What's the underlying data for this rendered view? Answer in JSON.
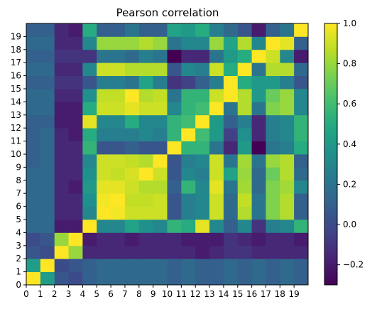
{
  "chart_data": {
    "type": "heatmap",
    "title": "Pearson correlation",
    "xlabel": "",
    "ylabel": "",
    "x_categories": [
      "0",
      "1",
      "2",
      "3",
      "4",
      "5",
      "6",
      "7",
      "8",
      "9",
      "10",
      "11",
      "12",
      "13",
      "14",
      "15",
      "16",
      "17",
      "18",
      "19"
    ],
    "y_categories": [
      "0",
      "1",
      "2",
      "3",
      "4",
      "5",
      "6",
      "7",
      "8",
      "9",
      "10",
      "11",
      "12",
      "13",
      "14",
      "15",
      "16",
      "17",
      "18",
      "19"
    ],
    "colormap": "viridis",
    "vmin": -0.3,
    "vmax": 1.0,
    "colorbar_ticks": [
      -0.2,
      0.0,
      0.2,
      0.4,
      0.6,
      0.8,
      1.0
    ],
    "colorbar_tick_labels": [
      "−0.2",
      "0.0",
      "0.2",
      "0.4",
      "0.6",
      "0.8",
      "1.0"
    ],
    "matrix": [
      [
        1.0,
        0.42,
        0.05,
        0.0,
        0.1,
        0.15,
        0.15,
        0.15,
        0.15,
        0.15,
        0.1,
        0.15,
        0.1,
        0.1,
        0.15,
        0.1,
        0.15,
        0.1,
        0.15,
        0.1
      ],
      [
        0.42,
        1.0,
        0.0,
        0.05,
        0.1,
        0.15,
        0.15,
        0.15,
        0.15,
        0.15,
        0.1,
        0.15,
        0.1,
        0.1,
        0.15,
        0.1,
        0.15,
        0.1,
        0.15,
        0.1
      ],
      [
        0.05,
        0.0,
        1.0,
        0.8,
        -0.15,
        -0.15,
        -0.15,
        -0.15,
        -0.15,
        -0.15,
        -0.15,
        -0.15,
        -0.2,
        -0.15,
        -0.1,
        -0.1,
        -0.15,
        -0.15,
        -0.15,
        -0.15
      ],
      [
        0.0,
        0.05,
        0.8,
        1.0,
        -0.2,
        -0.15,
        -0.15,
        -0.2,
        -0.15,
        -0.15,
        -0.15,
        -0.2,
        -0.2,
        -0.2,
        -0.1,
        -0.15,
        -0.2,
        -0.15,
        -0.15,
        -0.2
      ],
      [
        0.15,
        0.15,
        -0.2,
        -0.2,
        1.0,
        0.3,
        0.3,
        0.45,
        0.35,
        0.3,
        0.55,
        0.5,
        0.95,
        0.3,
        0.1,
        0.3,
        -0.1,
        0.25,
        0.3,
        0.55
      ],
      [
        0.15,
        0.15,
        -0.15,
        -0.15,
        0.3,
        1.0,
        0.98,
        0.9,
        0.9,
        0.9,
        0.05,
        0.25,
        0.3,
        0.9,
        0.15,
        0.85,
        0.2,
        0.75,
        0.85,
        0.1
      ],
      [
        0.15,
        0.15,
        -0.15,
        -0.15,
        0.35,
        0.98,
        1.0,
        0.88,
        0.88,
        0.9,
        0.05,
        0.25,
        0.3,
        0.9,
        0.15,
        0.88,
        0.2,
        0.75,
        0.85,
        0.1
      ],
      [
        0.15,
        0.15,
        -0.15,
        -0.2,
        0.4,
        0.95,
        0.95,
        0.9,
        0.85,
        0.85,
        0.1,
        0.55,
        0.3,
        0.95,
        0.2,
        0.82,
        0.15,
        0.75,
        0.82,
        0.3
      ],
      [
        0.15,
        0.15,
        -0.15,
        -0.15,
        0.35,
        0.9,
        0.88,
        0.92,
        1.0,
        0.9,
        0.05,
        0.3,
        0.25,
        0.9,
        0.45,
        0.8,
        0.15,
        0.7,
        0.85,
        0.15
      ],
      [
        0.1,
        0.15,
        -0.15,
        -0.15,
        0.3,
        0.9,
        0.9,
        0.88,
        0.85,
        1.0,
        0.05,
        0.25,
        0.3,
        0.9,
        0.2,
        0.82,
        0.2,
        0.8,
        0.85,
        0.1
      ],
      [
        0.1,
        0.15,
        -0.15,
        -0.15,
        0.55,
        0.05,
        0.05,
        0.1,
        0.05,
        0.05,
        1.0,
        0.55,
        0.55,
        0.2,
        -0.15,
        0.4,
        -0.3,
        0.2,
        0.25,
        0.5
      ],
      [
        0.1,
        0.15,
        -0.15,
        -0.2,
        0.5,
        0.25,
        0.25,
        0.25,
        0.3,
        0.25,
        0.55,
        1.0,
        0.6,
        0.4,
        -0.05,
        0.35,
        -0.15,
        0.25,
        0.3,
        0.55
      ],
      [
        0.1,
        0.1,
        -0.2,
        -0.2,
        0.95,
        0.3,
        0.3,
        0.5,
        0.3,
        0.3,
        0.55,
        0.6,
        1.0,
        0.4,
        0.1,
        0.25,
        -0.15,
        0.25,
        0.3,
        0.55
      ],
      [
        0.15,
        0.15,
        -0.2,
        -0.2,
        0.5,
        0.9,
        0.9,
        0.95,
        0.9,
        0.9,
        0.3,
        0.55,
        0.6,
        1.0,
        0.2,
        0.85,
        0.2,
        0.75,
        0.8,
        0.3
      ],
      [
        0.15,
        0.15,
        -0.15,
        -0.15,
        0.35,
        0.88,
        0.88,
        1.0,
        0.85,
        0.88,
        0.2,
        0.55,
        0.55,
        0.9,
        1.0,
        0.85,
        0.4,
        0.7,
        0.8,
        0.3
      ],
      [
        0.1,
        0.1,
        -0.1,
        -0.1,
        0.05,
        0.25,
        0.25,
        0.2,
        0.45,
        0.25,
        -0.1,
        -0.05,
        0.1,
        0.25,
        1.0,
        0.5,
        0.4,
        0.4,
        0.25,
        0.05
      ],
      [
        0.15,
        0.15,
        -0.15,
        -0.15,
        0.3,
        0.9,
        0.9,
        0.85,
        0.85,
        0.85,
        0.05,
        0.3,
        0.25,
        0.9,
        0.5,
        1.0,
        0.2,
        0.85,
        0.85,
        0.15
      ],
      [
        0.1,
        0.1,
        -0.1,
        -0.1,
        -0.1,
        0.2,
        0.2,
        0.15,
        0.25,
        0.2,
        -0.3,
        -0.15,
        -0.15,
        0.2,
        0.4,
        0.5,
        1.0,
        0.9,
        0.3,
        -0.2
      ],
      [
        0.15,
        0.15,
        -0.15,
        -0.15,
        0.3,
        0.8,
        0.8,
        0.8,
        0.85,
        0.8,
        0.2,
        0.3,
        0.3,
        0.8,
        0.45,
        0.85,
        0.3,
        1.0,
        0.95,
        0.1
      ],
      [
        0.1,
        0.1,
        -0.15,
        -0.2,
        0.5,
        0.1,
        0.1,
        0.2,
        0.1,
        0.1,
        0.45,
        0.4,
        0.5,
        0.25,
        0.15,
        0.05,
        -0.2,
        0.1,
        0.2,
        1.0
      ]
    ]
  }
}
